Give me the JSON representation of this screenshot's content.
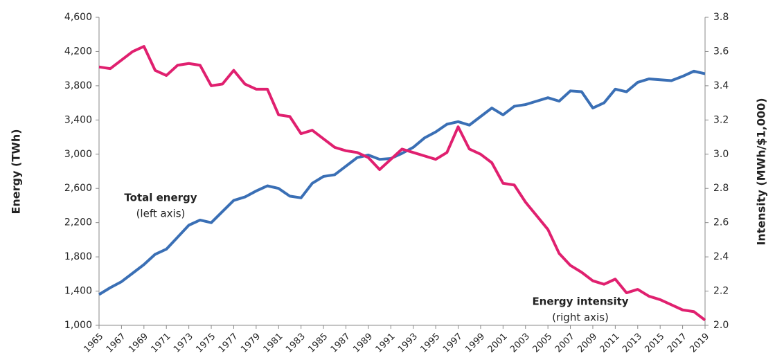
{
  "chart_data": {
    "type": "line",
    "x": [
      1965,
      1966,
      1967,
      1968,
      1969,
      1970,
      1971,
      1972,
      1973,
      1974,
      1975,
      1976,
      1977,
      1978,
      1979,
      1980,
      1981,
      1982,
      1983,
      1984,
      1985,
      1986,
      1987,
      1988,
      1989,
      1990,
      1991,
      1992,
      1993,
      1994,
      1995,
      1996,
      1997,
      1998,
      1999,
      2000,
      2001,
      2002,
      2003,
      2004,
      2005,
      2006,
      2007,
      2008,
      2009,
      2010,
      2011,
      2012,
      2013,
      2014,
      2015,
      2016,
      2017,
      2018,
      2019
    ],
    "series": [
      {
        "name": "Total energy",
        "color": "#3a6fb5",
        "axis": "y",
        "values": [
          1360,
          1440,
          1510,
          1610,
          1710,
          1830,
          1890,
          2030,
          2170,
          2230,
          2200,
          2330,
          2460,
          2500,
          2570,
          2630,
          2600,
          2510,
          2490,
          2660,
          2740,
          2760,
          2860,
          2960,
          2990,
          2940,
          2950,
          3010,
          3080,
          3190,
          3260,
          3350,
          3380,
          3340,
          3440,
          3540,
          3460,
          3560,
          3580,
          3620,
          3660,
          3620,
          3740,
          3730,
          3540,
          3600,
          3760,
          3730,
          3840,
          3880,
          3870,
          3860,
          3910,
          3970,
          3940
        ]
      },
      {
        "name": "Energy intensity",
        "color": "#e0206f",
        "axis": "y2",
        "values": [
          3.51,
          3.5,
          3.55,
          3.6,
          3.63,
          3.49,
          3.46,
          3.52,
          3.53,
          3.52,
          3.4,
          3.41,
          3.49,
          3.41,
          3.38,
          3.38,
          3.23,
          3.22,
          3.12,
          3.14,
          3.09,
          3.04,
          3.02,
          3.01,
          2.98,
          2.91,
          2.97,
          3.03,
          3.01,
          2.99,
          2.97,
          3.01,
          3.16,
          3.03,
          3.0,
          2.95,
          2.83,
          2.82,
          2.72,
          2.64,
          2.56,
          2.42,
          2.35,
          2.31,
          2.26,
          2.24,
          2.27,
          2.19,
          2.21,
          2.17,
          2.15,
          2.12,
          2.09,
          2.08,
          2.03
        ]
      }
    ],
    "annotations": [
      {
        "title": "Total energy",
        "note": "(left axis)"
      },
      {
        "title": "Energy intensity",
        "note": "(right axis)"
      }
    ],
    "ylabel": "Energy (TWh)",
    "y2label": "Intensity (MWh/$1,000)",
    "xlim": [
      1965,
      2019
    ],
    "xticks": [
      1965,
      1967,
      1969,
      1971,
      1973,
      1975,
      1977,
      1979,
      1981,
      1983,
      1985,
      1987,
      1989,
      1991,
      1993,
      1995,
      1997,
      1999,
      2001,
      2003,
      2005,
      2007,
      2009,
      2011,
      2013,
      2015,
      2017,
      2019
    ],
    "ylim": [
      1000,
      4600
    ],
    "yticks": [
      {
        "value": 1000,
        "label": "1,000"
      },
      {
        "value": 1400,
        "label": "1,400"
      },
      {
        "value": 1800,
        "label": "1,800"
      },
      {
        "value": 2200,
        "label": "2,200"
      },
      {
        "value": 2600,
        "label": "2,600"
      },
      {
        "value": 3000,
        "label": "3,000"
      },
      {
        "value": 3400,
        "label": "3,400"
      },
      {
        "value": 3800,
        "label": "3,800"
      },
      {
        "value": 4200,
        "label": "4,200"
      },
      {
        "value": 4600,
        "label": "4,600"
      }
    ],
    "y2lim": [
      2.0,
      3.8
    ],
    "y2ticks": [
      {
        "value": 2.0,
        "label": "2.0"
      },
      2.2,
      2.4,
      2.6,
      2.8,
      {
        "value": 3.0,
        "label": "3.0"
      },
      3.2,
      3.4,
      3.6,
      3.8
    ],
    "grid": false
  }
}
